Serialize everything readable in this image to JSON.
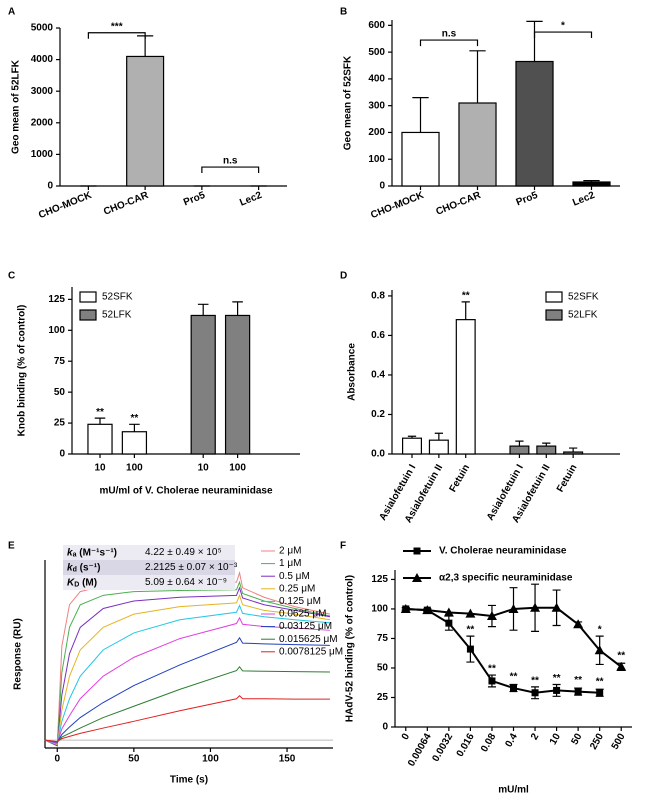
{
  "chart_data": [
    {
      "panel": "A",
      "type": "bar",
      "categories": [
        "CHO-MOCK",
        "CHO-CAR",
        "Pro5",
        "Lec2"
      ],
      "values": [
        0,
        4100,
        0,
        0
      ],
      "errors": [
        0,
        650,
        0,
        0
      ],
      "colors": [
        "#ffffff",
        "#b0b0b0",
        "#505050",
        "#000000"
      ],
      "ylabel": "Geo mean of 52LFK",
      "ylim": [
        0,
        5000
      ],
      "yticks": [
        0,
        1000,
        2000,
        3000,
        4000,
        5000
      ],
      "annotations": [
        {
          "text": "***",
          "from": 0,
          "to": 1,
          "y": 4850
        },
        {
          "text": "n.s",
          "from": 2,
          "to": 3,
          "y": 600
        }
      ]
    },
    {
      "panel": "B",
      "type": "bar",
      "categories": [
        "CHO-MOCK",
        "CHO-CAR",
        "Pro5",
        "Lec2"
      ],
      "values": [
        200,
        310,
        465,
        15
      ],
      "errors": [
        130,
        195,
        150,
        5
      ],
      "colors": [
        "#ffffff",
        "#b0b0b0",
        "#505050",
        "#000000"
      ],
      "ylabel": "Geo mean of 52SFK",
      "ylim": [
        0,
        620
      ],
      "yticks": [
        0,
        100,
        200,
        300,
        400,
        500,
        600
      ],
      "annotations": [
        {
          "text": "n.s",
          "from": 0,
          "to": 1,
          "y": 545
        },
        {
          "text": "*",
          "from": 2,
          "to": 3,
          "y": 575
        }
      ]
    },
    {
      "panel": "C",
      "type": "bar",
      "categories": [
        "10",
        "100"
      ],
      "series": [
        {
          "name": "52SFK",
          "color": "#ffffff",
          "values": [
            24,
            18
          ],
          "errors": [
            5,
            6
          ]
        },
        {
          "name": "52LFK",
          "color": "#808080",
          "values": [
            112,
            112
          ],
          "errors": [
            9,
            11
          ]
        }
      ],
      "ylabel": "Knob binding (% of control)",
      "xlabel": "mU/ml of V. Cholerae neuraminidase",
      "ylim": [
        0,
        135
      ],
      "yticks": [
        0,
        25,
        50,
        75,
        100,
        125
      ],
      "legend": "upper left",
      "annotations": [
        {
          "text": "**",
          "series": 0,
          "index": 0
        },
        {
          "text": "**",
          "series": 0,
          "index": 1
        }
      ]
    },
    {
      "panel": "D",
      "type": "bar",
      "categories": [
        "Asialofetuin I",
        "Asialofetuin II",
        "Fetuin"
      ],
      "series": [
        {
          "name": "52SFK",
          "color": "#ffffff",
          "values": [
            0.08,
            0.07,
            0.68
          ],
          "errors": [
            0.01,
            0.035,
            0.09
          ]
        },
        {
          "name": "52LFK",
          "color": "#808080",
          "values": [
            0.04,
            0.04,
            0.01
          ],
          "errors": [
            0.025,
            0.015,
            0.02
          ]
        }
      ],
      "ylabel": "Absorbance",
      "ylim": [
        0,
        0.83
      ],
      "yticks": [
        {
          "value": 0,
          "label": "0.0"
        },
        0.2,
        0.4,
        0.6,
        0.8
      ],
      "legend": "upper right",
      "annotations": [
        {
          "text": "**",
          "series": 0,
          "index": 2
        }
      ]
    },
    {
      "panel": "E",
      "type": "line",
      "x": [
        -8,
        0,
        3,
        8,
        15,
        30,
        50,
        80,
        117,
        119,
        121,
        135,
        155,
        178
      ],
      "series": [
        {
          "name": "2 μM",
          "color": "#f08080",
          "values": [
            0,
            -15,
            250,
            360,
            395,
            410,
            415,
            418,
            420,
            445,
            405,
            380,
            355,
            335
          ]
        },
        {
          "name": "1 μM",
          "color": "#4caf50",
          "values": [
            0,
            -15,
            180,
            300,
            360,
            385,
            395,
            398,
            400,
            420,
            390,
            370,
            350,
            330
          ]
        },
        {
          "name": "0.5 μM",
          "color": "#7b2fbf",
          "values": [
            0,
            -15,
            120,
            230,
            300,
            350,
            370,
            380,
            385,
            405,
            378,
            360,
            345,
            328
          ]
        },
        {
          "name": "0.25 μM",
          "color": "#e6b422",
          "values": [
            0,
            -12,
            80,
            170,
            240,
            300,
            335,
            355,
            365,
            385,
            360,
            345,
            335,
            320
          ]
        },
        {
          "name": "0.125 μM",
          "color": "#22c7e6",
          "values": [
            0,
            -10,
            50,
            110,
            170,
            240,
            285,
            320,
            340,
            358,
            337,
            328,
            320,
            312
          ]
        },
        {
          "name": "0.0625 μM",
          "color": "#e040e0",
          "values": [
            0,
            -8,
            30,
            65,
            110,
            170,
            220,
            270,
            310,
            325,
            308,
            302,
            298,
            292
          ]
        },
        {
          "name": "0.03125 μM",
          "color": "#1f3fbf",
          "values": [
            0,
            -6,
            15,
            35,
            60,
            100,
            145,
            200,
            260,
            272,
            258,
            256,
            254,
            252
          ]
        },
        {
          "name": "0.015625 μM",
          "color": "#2e7d32",
          "values": [
            0,
            -5,
            8,
            18,
            32,
            60,
            90,
            135,
            185,
            195,
            184,
            183,
            182,
            181
          ]
        },
        {
          "name": "0.0078125 μM",
          "color": "#e02020",
          "values": [
            0,
            -4,
            4,
            10,
            18,
            32,
            50,
            78,
            110,
            118,
            110,
            110,
            109,
            109
          ]
        }
      ],
      "xlabel": "Time (s)",
      "ylabel": "Response (RU)",
      "xlim": [
        -8,
        180
      ],
      "xticks": [
        0,
        50,
        100,
        150
      ],
      "ylim": [
        -21,
        479
      ],
      "legend": "upper right",
      "table": [
        {
          "symbol": "k",
          "sub": "a",
          "unit": " (M⁻¹s⁻¹)",
          "value": "4.22 ± 0.49 × 10⁵"
        },
        {
          "symbol": "k",
          "sub": "d",
          "unit": " (s⁻¹)",
          "value": "2.2125 ± 0.07 × 10⁻³"
        },
        {
          "symbol": "K",
          "sub": "D",
          "unit": " (M)",
          "value": "5.09 ± 0.64 × 10⁻⁹"
        }
      ]
    },
    {
      "panel": "F",
      "type": "line",
      "categories": [
        "0",
        "0.00064",
        "0.0032",
        "0.016",
        "0.08",
        "0.4",
        "2",
        "10",
        "50",
        "250",
        "500"
      ],
      "series": [
        {
          "name": "V. Cholerae neuraminidase",
          "color": "#000000",
          "marker": "square",
          "values": [
            100,
            99,
            88,
            66,
            39,
            33,
            29,
            31,
            30,
            29,
            null
          ],
          "errors": [
            1,
            1,
            6,
            11,
            5,
            3,
            5,
            5,
            3,
            3,
            null
          ]
        },
        {
          "name": "α2,3 specific neuraminidase",
          "color": "#000000",
          "marker": "triangle",
          "values": [
            100,
            99,
            97,
            96,
            94,
            100,
            101,
            101,
            87,
            65,
            51
          ],
          "errors": [
            1,
            1,
            0,
            0,
            9,
            18,
            20,
            15,
            2,
            12,
            3
          ]
        }
      ],
      "xlabel": "mU/ml",
      "ylabel": "HAdV-52 binding (% of control)",
      "ylim": [
        0,
        133
      ],
      "yticks": [
        0,
        25,
        50,
        75,
        100,
        125
      ],
      "legend": "upper left",
      "annotations": [
        {
          "text": "**",
          "series": 0,
          "index": 3
        },
        {
          "text": "**",
          "series": 0,
          "index": 4
        },
        {
          "text": "**",
          "series": 0,
          "index": 5
        },
        {
          "text": "**",
          "series": 0,
          "index": 6
        },
        {
          "text": "**",
          "series": 0,
          "index": 7
        },
        {
          "text": "**",
          "series": 0,
          "index": 8
        },
        {
          "text": "**",
          "series": 0,
          "index": 9
        },
        {
          "text": "*",
          "series": 1,
          "index": 9
        },
        {
          "text": "**",
          "series": 1,
          "index": 10
        }
      ]
    }
  ]
}
